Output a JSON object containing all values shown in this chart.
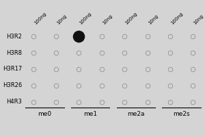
{
  "rows": [
    "H3R2",
    "H3R8",
    "H3R17",
    "H3R26",
    "H4R3"
  ],
  "col_groups": [
    "me0",
    "me1",
    "me2a",
    "me2s"
  ],
  "col_labels": [
    "100ng",
    "10ng",
    "100ng",
    "10ng",
    "100ng",
    "10ng",
    "100ng",
    "10ng"
  ],
  "filled_dots": [
    [
      0,
      2
    ]
  ],
  "background_color": "#d4d4d4",
  "empty_dot_edge_color": "#999999",
  "empty_dot_face_color": "#d4d4d4",
  "filled_dot_color": "#111111",
  "row_label_fontsize": 6.0,
  "col_label_fontsize": 5.0,
  "group_label_fontsize": 6.5,
  "dot_size_empty": 22,
  "dot_size_filled": 160,
  "dot_linewidth_empty": 0.7
}
